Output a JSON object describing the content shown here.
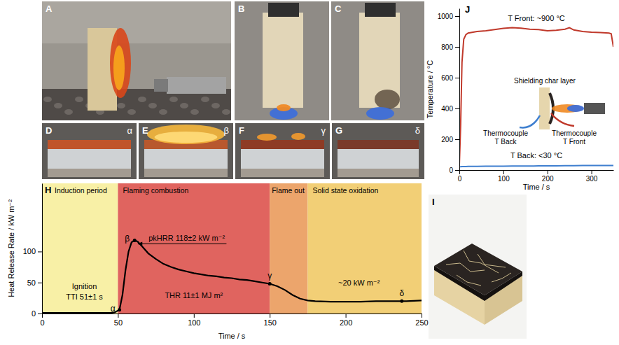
{
  "panels": [
    {
      "letter": "A"
    },
    {
      "letter": "B"
    },
    {
      "letter": "C"
    },
    {
      "letter": "D",
      "label": "α"
    },
    {
      "letter": "E",
      "label": "β"
    },
    {
      "letter": "F",
      "label": "γ"
    },
    {
      "letter": "G",
      "label": "δ"
    },
    {
      "letter": "I"
    }
  ],
  "chart_data": [
    {
      "panel": "H",
      "type": "line",
      "x_label": "Time / s",
      "y_label": "Heat Release Rate / kW m⁻²",
      "xlim": [
        0,
        250
      ],
      "xticks": [
        0,
        50,
        100,
        150,
        200,
        250
      ],
      "ylim": [
        0,
        210
      ],
      "yticks": [
        0,
        50,
        100
      ],
      "x": [
        0,
        10,
        20,
        30,
        40,
        45,
        48,
        51,
        53,
        55,
        57,
        59,
        61,
        63,
        66,
        70,
        75,
        80,
        85,
        90,
        95,
        100,
        105,
        110,
        115,
        120,
        125,
        130,
        135,
        140,
        145,
        150,
        155,
        160,
        165,
        170,
        175,
        180,
        190,
        200,
        210,
        220,
        230,
        240,
        250
      ],
      "series": [
        {
          "color": "#000000",
          "values": [
            1,
            1,
            1,
            1,
            1,
            1,
            2,
            6,
            30,
            70,
            100,
            115,
            118,
            116,
            108,
            97,
            88,
            80,
            75,
            71,
            68,
            65,
            63,
            61,
            60,
            58,
            57,
            55,
            54,
            52,
            50,
            48,
            44,
            38,
            30,
            24,
            21,
            20,
            19,
            19,
            19,
            20,
            20,
            20,
            21
          ]
        }
      ],
      "regions": [
        {
          "label": "Induction period",
          "start": 0,
          "end": 50,
          "color": "#f8f0a6"
        },
        {
          "label": "Flaming combustion",
          "start": 50,
          "end": 150,
          "color": "#e0645f"
        },
        {
          "label": "Flame out",
          "start": 150,
          "end": 175,
          "color": "#eca56c"
        },
        {
          "label": "Solid state oxidation",
          "start": 175,
          "end": 250,
          "color": "#f2cf76"
        }
      ],
      "markers": [
        {
          "label": "α",
          "x": 51,
          "y": 6
        },
        {
          "label": "β",
          "x": 61,
          "y": 118
        },
        {
          "label": "γ",
          "x": 150,
          "y": 48
        },
        {
          "label": "δ",
          "x": 237,
          "y": 20
        }
      ],
      "annotations": {
        "ignition": "Ignition",
        "tti": "TTI 51±1 s",
        "pkhrr": "pkHRR 118±2 kW m⁻²",
        "thr": "THR 11±1 MJ m²",
        "residual": "~20 kW m⁻²"
      }
    },
    {
      "panel": "J",
      "type": "line",
      "x_label": "Time / s",
      "y_label": "Temperature / °C",
      "xlim": [
        0,
        350
      ],
      "xticks": [
        0,
        100,
        200,
        300
      ],
      "ylim": [
        0,
        1050
      ],
      "yticks": [
        0,
        200,
        400,
        600,
        800,
        1000
      ],
      "x": [
        0,
        3,
        6,
        10,
        15,
        20,
        40,
        60,
        80,
        100,
        120,
        140,
        160,
        180,
        200,
        220,
        240,
        250,
        260,
        280,
        300,
        320,
        340,
        345,
        350
      ],
      "series": [
        {
          "name": "T Front: ~900 °C",
          "color": "#c0392b",
          "values": [
            25,
            300,
            700,
            850,
            880,
            890,
            900,
            905,
            912,
            920,
            925,
            922,
            915,
            912,
            905,
            908,
            915,
            925,
            910,
            900,
            895,
            893,
            890,
            885,
            800
          ]
        },
        {
          "name": "T Back: <30 °C",
          "color": "#3f7fcf",
          "values": [
            22,
            22,
            23,
            23,
            23,
            24,
            24,
            25,
            25,
            25,
            26,
            26,
            26,
            27,
            27,
            27,
            28,
            28,
            28,
            29,
            29,
            29,
            30,
            30,
            30
          ]
        }
      ],
      "inset": {
        "char_layer": "Shielding char layer",
        "back": [
          "Thermocouple",
          "T Back"
        ],
        "front": [
          "Thermocouple",
          "T Front"
        ]
      }
    }
  ]
}
